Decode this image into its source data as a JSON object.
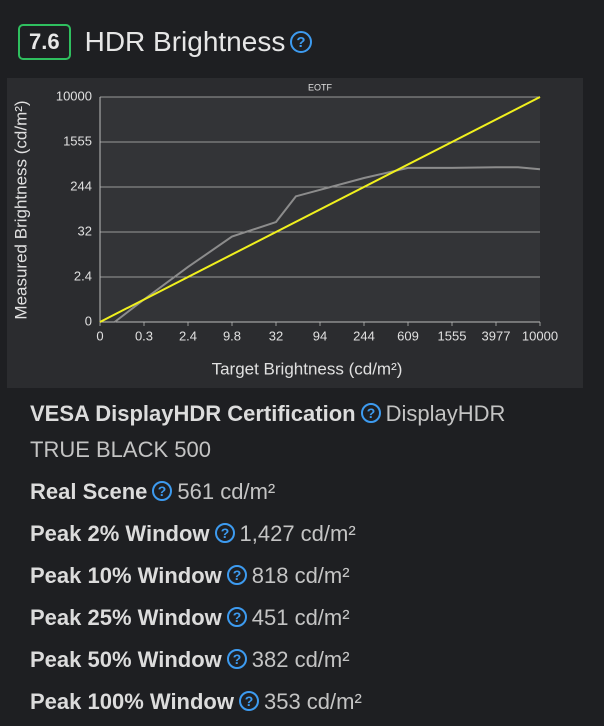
{
  "score": "7.6",
  "title": "HDR Brightness",
  "chart_data": {
    "type": "line",
    "title": "EOTF",
    "x_label": "Target Brightness (cd/m²)",
    "y_label": "Measured Brightness (cd/m²)",
    "xlim": [
      0,
      10000
    ],
    "ylim": [
      0,
      10000
    ],
    "xticks": [
      0,
      0.3,
      2.4,
      9.8,
      32,
      94,
      244,
      609,
      1555,
      3977,
      10000
    ],
    "yticks": [
      0,
      2.4,
      32,
      244,
      1555,
      10000
    ],
    "grid": true,
    "series": [
      {
        "color": "#f0f01e",
        "x": [
          0,
          10000
        ],
        "values": [
          0,
          10000
        ]
      },
      {
        "color": "#8c8c8c",
        "x": [
          0.1,
          0.3,
          2.4,
          9.8,
          32,
          60,
          244,
          609,
          1555,
          3977,
          7000,
          10000
        ],
        "values": [
          0,
          1.2,
          9,
          29,
          79,
          200,
          506,
          800,
          800,
          820,
          820,
          760
        ]
      }
    ]
  },
  "specs": [
    {
      "label": "VESA DisplayHDR Certification",
      "value": "DisplayHDR TRUE BLACK 500"
    },
    {
      "label": "Real Scene",
      "value": "561 cd/m²"
    },
    {
      "label": "Peak 2% Window",
      "value": "1,427 cd/m²"
    },
    {
      "label": "Peak 10% Window",
      "value": "818 cd/m²"
    },
    {
      "label": "Peak 25% Window",
      "value": "451 cd/m²"
    },
    {
      "label": "Peak 50% Window",
      "value": "382 cd/m²"
    },
    {
      "label": "Peak 100% Window",
      "value": "353 cd/m²"
    }
  ]
}
